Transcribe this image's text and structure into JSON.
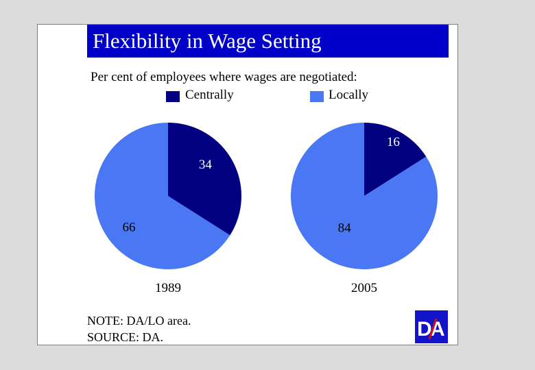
{
  "title": "Flexibility in Wage Setting",
  "subtitle": "Per cent of employees where wages are negotiated:",
  "legend": [
    {
      "label": "Centrally",
      "color": "#000080"
    },
    {
      "label": "Locally",
      "color": "#4a78f5"
    }
  ],
  "chart_data": [
    {
      "type": "pie",
      "year_label": "1989",
      "categories": [
        "Centrally",
        "Locally"
      ],
      "values": [
        34,
        66
      ],
      "colors": [
        "#000080",
        "#4a78f5"
      ]
    },
    {
      "type": "pie",
      "year_label": "2005",
      "categories": [
        "Centrally",
        "Locally"
      ],
      "values": [
        16,
        84
      ],
      "colors": [
        "#000080",
        "#4a78f5"
      ]
    }
  ],
  "footer": {
    "note": "NOTE: DA/LO area.",
    "source": "SOURCE: DA."
  },
  "logo": {
    "text_d": "D",
    "text_a": "A"
  }
}
